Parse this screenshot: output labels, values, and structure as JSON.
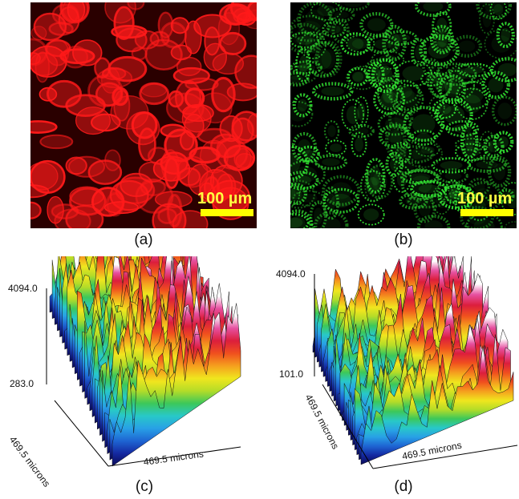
{
  "panels": {
    "a": {
      "caption": "(a)",
      "scalebar": "100 µm",
      "channel_color": "#ff1a1a"
    },
    "b": {
      "caption": "(b)",
      "scalebar": "100 µm",
      "channel_color": "#33e633"
    },
    "c": {
      "caption": "(c)",
      "z_max": "4094.0",
      "z_min": "283.0",
      "y_axis_label": "469.5 microns",
      "x_axis_label": "469.5 microns"
    },
    "d": {
      "caption": "(d)",
      "z_max": "4094.0",
      "z_min": "101.0",
      "y_axis_label": "469.5 microns",
      "x_axis_label": "469.5 microns"
    }
  },
  "colors": {
    "scalebar": "#ffff00",
    "surface_base": "#1a1a6e"
  }
}
